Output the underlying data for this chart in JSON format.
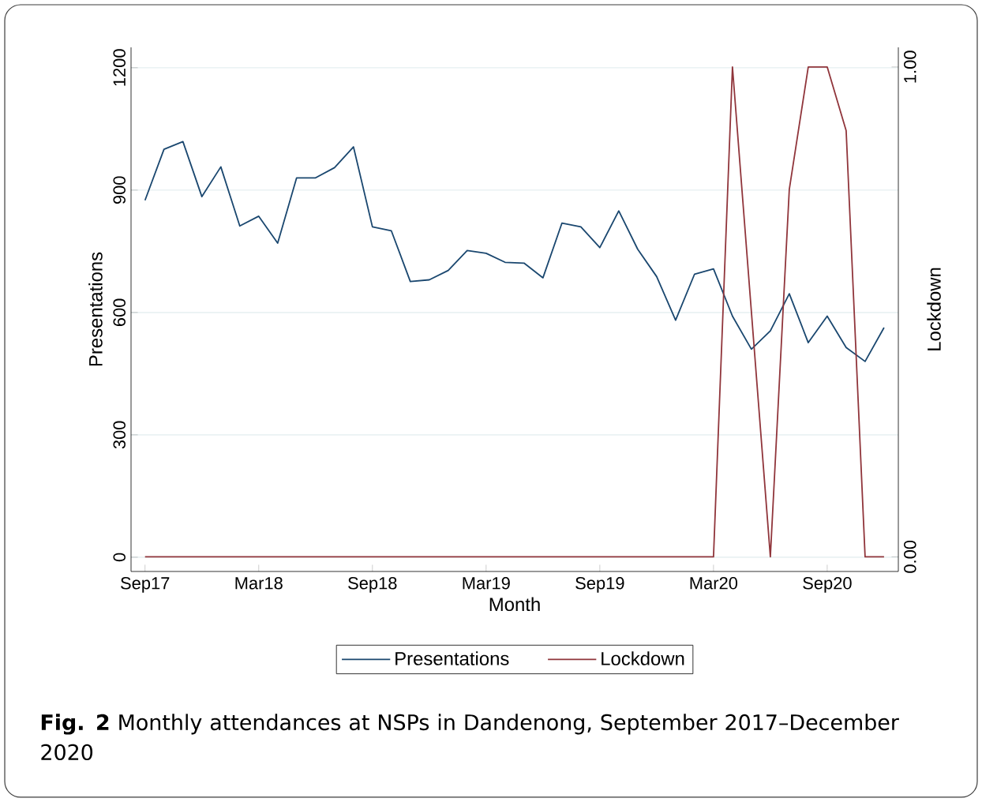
{
  "chart_data": {
    "type": "line",
    "x": [
      "2017-09",
      "2017-10",
      "2017-11",
      "2017-12",
      "2018-01",
      "2018-02",
      "2018-03",
      "2018-04",
      "2018-05",
      "2018-06",
      "2018-07",
      "2018-08",
      "2018-09",
      "2018-10",
      "2018-11",
      "2018-12",
      "2019-01",
      "2019-02",
      "2019-03",
      "2019-04",
      "2019-05",
      "2019-06",
      "2019-07",
      "2019-08",
      "2019-09",
      "2019-10",
      "2019-11",
      "2019-12",
      "2020-01",
      "2020-02",
      "2020-03",
      "2020-04",
      "2020-05",
      "2020-06",
      "2020-07",
      "2020-08",
      "2020-09",
      "2020-10",
      "2020-11",
      "2020-12"
    ],
    "series": [
      {
        "name": "Presentations",
        "color": "#1a476f",
        "values": [
          875,
          1000,
          1019,
          884,
          957,
          812,
          836,
          770,
          930,
          930,
          955,
          1006,
          810,
          800,
          676,
          680,
          703,
          752,
          745,
          723,
          721,
          685,
          819,
          810,
          759,
          849,
          755,
          688,
          581,
          694,
          707,
          591,
          510,
          555,
          646,
          526,
          591,
          514,
          480,
          563
        ]
      },
      {
        "name": "Lockdown",
        "color": "#90353b",
        "axis": "y2",
        "values": [
          0,
          0,
          0,
          0,
          0,
          0,
          0,
          0,
          0,
          0,
          0,
          0,
          0,
          0,
          0,
          0,
          0,
          0,
          0,
          0,
          0,
          0,
          0,
          0,
          0,
          0,
          0,
          0,
          0,
          0,
          0,
          1,
          0.5,
          0,
          0.75,
          1,
          1,
          0.87,
          0,
          0
        ]
      }
    ],
    "xlabel": "Month",
    "ylabel": "Presentations",
    "y2label": "Lockdown",
    "xlim": [
      "2017-08-09",
      "2020-12-24"
    ],
    "xticks": [
      {
        "value": "2017-09",
        "label": "Sep17"
      },
      {
        "value": "2018-03",
        "label": "Mar18"
      },
      {
        "value": "2018-09",
        "label": "Sep18"
      },
      {
        "value": "2019-03",
        "label": "Mar19"
      },
      {
        "value": "2019-09",
        "label": "Sep19"
      },
      {
        "value": "2020-03",
        "label": "Mar20"
      },
      {
        "value": "2020-09",
        "label": "Sep20"
      }
    ],
    "ylim": [
      -35,
      1250
    ],
    "yticks": [
      0,
      300,
      600,
      900,
      1200
    ],
    "y2lim": [
      -0.03,
      1.04
    ],
    "y2ticks": [
      {
        "value": 0,
        "label": "0.00"
      },
      {
        "value": 1,
        "label": "1.00"
      }
    ],
    "grid": "y",
    "legend": "bottom",
    "marker": "none",
    "line_style": "solid",
    "annotations": [
      "**Fig. 2**  Monthly attendances at NSPs in Dandenong, September 2017–December 2020"
    ]
  }
}
